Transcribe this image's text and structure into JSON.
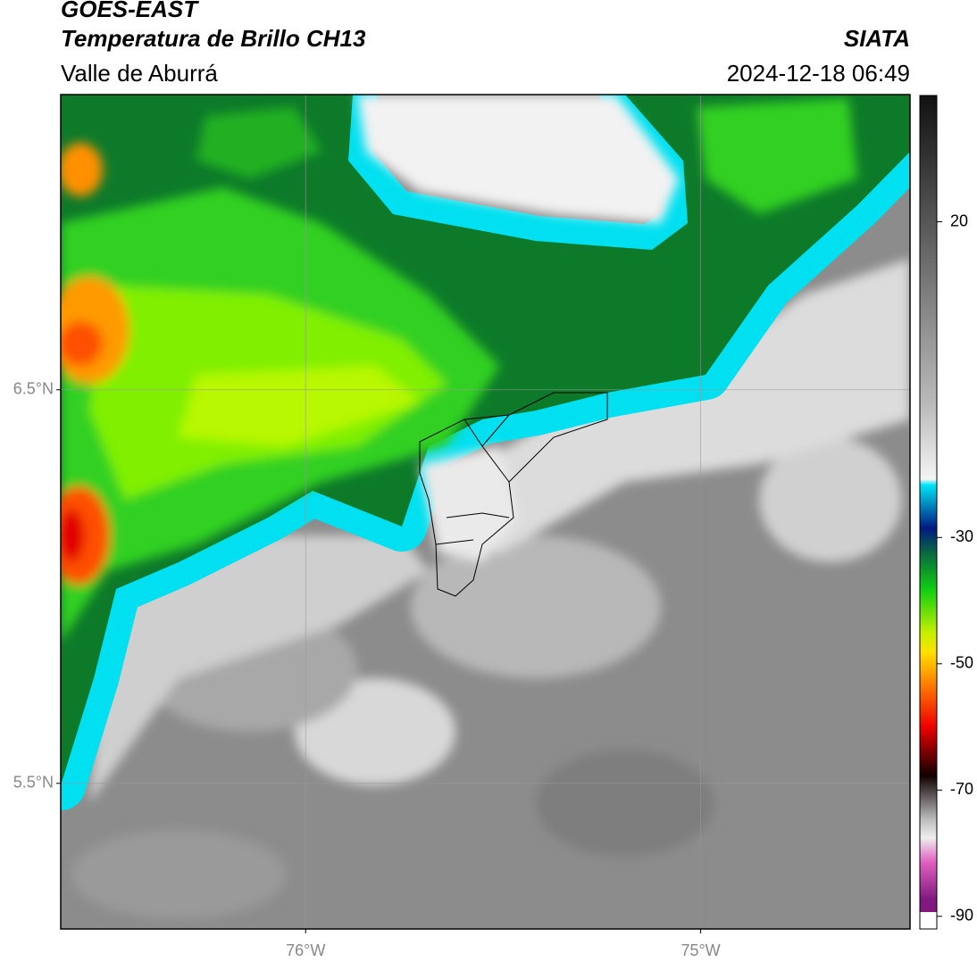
{
  "header": {
    "line1": "GOES-EAST",
    "title": "Temperatura de Brillo CH13",
    "source": "SIATA",
    "region": "Valle de Aburrá",
    "timestamp": "2024-12-18 06:49"
  },
  "map": {
    "xlim": [
      -76.62,
      -74.47
    ],
    "ylim": [
      5.13,
      7.25
    ],
    "xticks": [
      {
        "value": -76,
        "label": "76°W"
      },
      {
        "value": -75,
        "label": "75°W"
      }
    ],
    "yticks": [
      {
        "value": 6.5,
        "label": "6.5°N"
      },
      {
        "value": 5.5,
        "label": "5.5°N"
      }
    ],
    "grid": true
  },
  "colorbar": {
    "clim": [
      -92,
      40
    ],
    "ticks": [
      -90,
      -70,
      -50,
      -30,
      20
    ]
  }
}
